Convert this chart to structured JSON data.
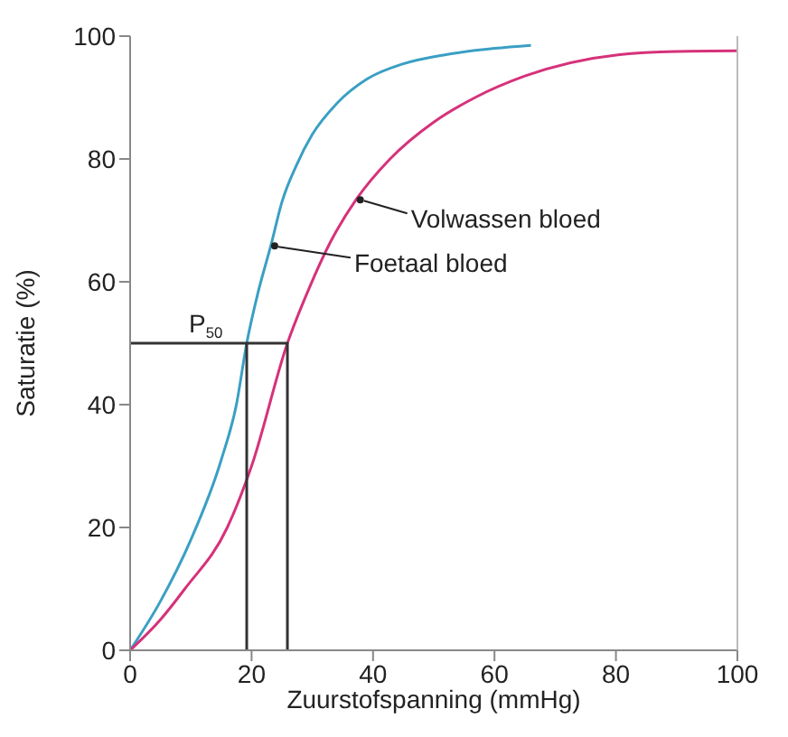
{
  "chart_data": {
    "type": "line",
    "xlabel": "Zuurstofspanning (mmHg)",
    "ylabel": "Saturatie (%)",
    "xlim": [
      0,
      100
    ],
    "xticks": [
      0,
      20,
      40,
      60,
      80,
      100
    ],
    "ylim": [
      0,
      100
    ],
    "yticks": [
      0,
      20,
      40,
      60,
      80,
      100
    ],
    "marker": "none",
    "line_style": "solid",
    "series": [
      {
        "color": "#3a9fc4",
        "x": [
          0,
          5,
          10,
          15,
          17.5,
          19.2,
          21,
          23.2,
          25,
          27.4,
          30,
          34,
          39,
          45,
          52,
          60,
          66
        ],
        "values": [
          0,
          8,
          18,
          31,
          40,
          50,
          58,
          66,
          73,
          79,
          84,
          89,
          93,
          95.5,
          97,
          98,
          98.5
        ]
      },
      {
        "color": "#d6317a",
        "x": [
          0,
          5,
          9,
          16,
          20,
          25.9,
          29.5,
          33,
          37.3,
          42.8,
          50,
          56.8,
          65,
          80.6,
          90,
          100
        ],
        "values": [
          0,
          5,
          10,
          20,
          30,
          50,
          59,
          66.5,
          73.5,
          80,
          86,
          90,
          93.5,
          97,
          97.5,
          97.6
        ]
      },
      {
        "color": "#333333",
        "x": [
          0,
          25.9,
          25.9
        ],
        "values": [
          50,
          50,
          0
        ]
      },
      {
        "color": "#333333",
        "x": [
          19.2,
          19.2
        ],
        "values": [
          50,
          0
        ]
      }
    ],
    "annotations": [
      {
        "text": "Volwassen bloed",
        "x": 37.3,
        "y": 73.5
      },
      {
        "text": "Foetaal bloed",
        "x": 23.2,
        "y": 66
      },
      {
        "text": "P$_{50}$",
        "x": 19.2,
        "y": 50
      }
    ]
  }
}
